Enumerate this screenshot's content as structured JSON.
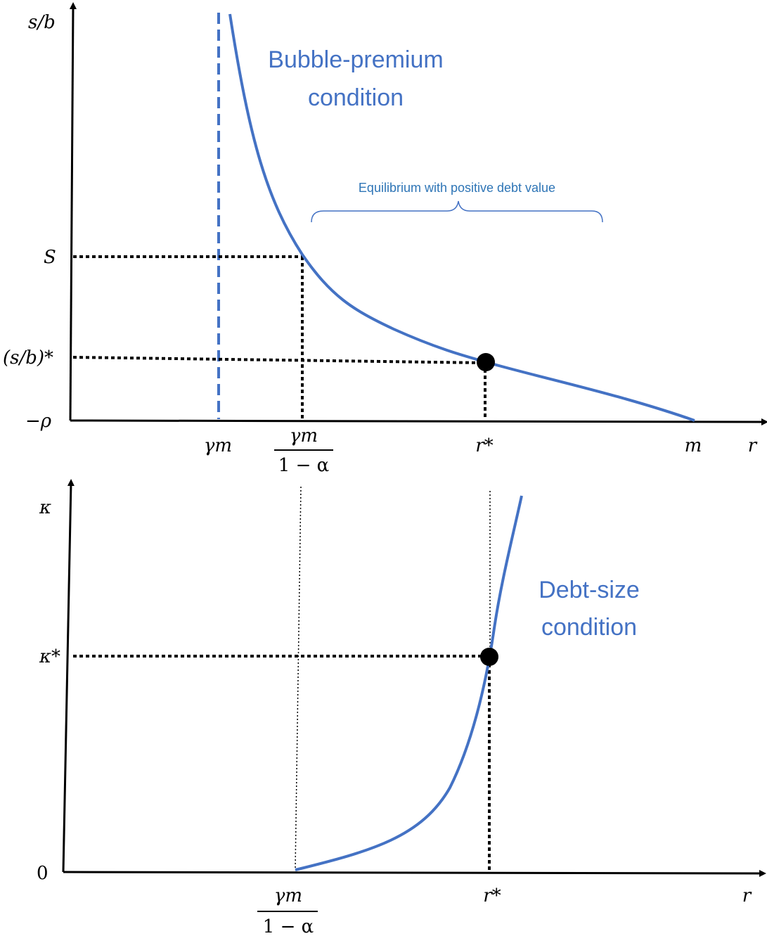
{
  "colors": {
    "curve": "#4472C4",
    "axis": "#000000",
    "brace_text": "#2E75B6"
  },
  "top_panel": {
    "y_axis_label": "s/b",
    "x_axis_label": "r",
    "y_ticks": {
      "S": "S",
      "sb_star": "(s/b)*",
      "neg_rho": "−ρ"
    },
    "x_ticks": {
      "gamma_m": "γm",
      "frac_num": "γm",
      "frac_den": "1 − α",
      "r_star": "r*",
      "m": "m"
    },
    "curve_label_line1": "Bubble-premium",
    "curve_label_line2": "condition",
    "brace_label": "Equilibrium with positive debt value"
  },
  "bottom_panel": {
    "y_axis_label": "κ",
    "x_axis_label": "r",
    "y_ticks": {
      "kappa_star": "κ*",
      "zero": "0"
    },
    "x_ticks": {
      "frac_num": "γm",
      "frac_den": "1 − α",
      "r_star": "r*"
    },
    "curve_label_line1": "Debt-size",
    "curve_label_line2": "condition"
  }
}
